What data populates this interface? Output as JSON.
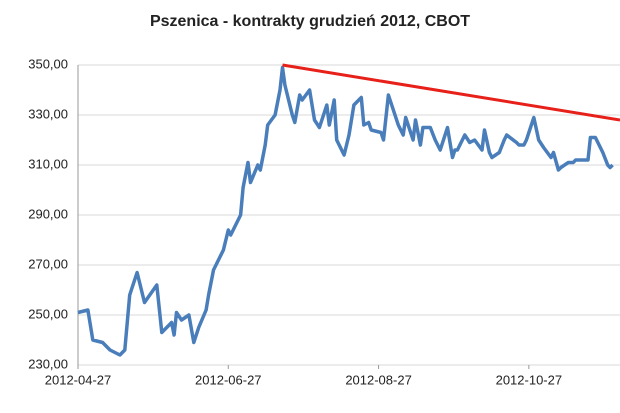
{
  "chart_data": {
    "type": "line",
    "title": "Pszenica - kontrakty grudzień 2012, CBOT",
    "x": [
      "2012-04-27",
      "2012-05-01",
      "2012-05-03",
      "2012-05-07",
      "2012-05-10",
      "2012-05-14",
      "2012-05-16",
      "2012-05-18",
      "2012-05-21",
      "2012-05-24",
      "2012-05-29",
      "2012-05-31",
      "2012-06-04",
      "2012-06-05",
      "2012-06-06",
      "2012-06-08",
      "2012-06-11",
      "2012-06-13",
      "2012-06-15",
      "2012-06-18",
      "2012-06-19",
      "2012-06-21",
      "2012-06-25",
      "2012-06-27",
      "2012-06-28",
      "2012-07-02",
      "2012-07-03",
      "2012-07-05",
      "2012-07-06",
      "2012-07-09",
      "2012-07-10",
      "2012-07-12",
      "2012-07-13",
      "2012-07-16",
      "2012-07-18",
      "2012-07-19",
      "2012-07-20",
      "2012-07-23",
      "2012-07-24",
      "2012-07-26",
      "2012-07-27",
      "2012-07-30",
      "2012-08-01",
      "2012-08-03",
      "2012-08-06",
      "2012-08-07",
      "2012-08-09",
      "2012-08-10",
      "2012-08-13",
      "2012-08-15",
      "2012-08-17",
      "2012-08-20",
      "2012-08-21",
      "2012-08-23",
      "2012-08-24",
      "2012-08-28",
      "2012-08-29",
      "2012-08-31",
      "2012-09-04",
      "2012-09-06",
      "2012-09-07",
      "2012-09-10",
      "2012-09-11",
      "2012-09-13",
      "2012-09-14",
      "2012-09-17",
      "2012-09-19",
      "2012-09-21",
      "2012-09-24",
      "2012-09-26",
      "2012-09-27",
      "2012-09-28",
      "2012-10-01",
      "2012-10-03",
      "2012-10-05",
      "2012-10-08",
      "2012-10-09",
      "2012-10-11",
      "2012-10-12",
      "2012-10-15",
      "2012-10-17",
      "2012-10-18",
      "2012-10-22",
      "2012-10-23",
      "2012-10-25",
      "2012-10-26",
      "2012-10-29",
      "2012-10-31",
      "2012-11-02",
      "2012-11-05",
      "2012-11-06",
      "2012-11-08",
      "2012-11-09",
      "2012-11-12",
      "2012-11-14",
      "2012-11-15",
      "2012-11-19",
      "2012-11-20",
      "2012-11-21",
      "2012-11-23",
      "2012-11-26",
      "2012-11-28",
      "2012-11-29",
      "2012-11-30"
    ],
    "series": [
      {
        "name": "Pszenica",
        "color": "#4a7ebb",
        "values": [
          251,
          252,
          240,
          239,
          236,
          234,
          236,
          258,
          267,
          255,
          262,
          243,
          247,
          242,
          251,
          248,
          250,
          239,
          245,
          252,
          258,
          268,
          276,
          284,
          282,
          290,
          301,
          311,
          303,
          310,
          308,
          318,
          326,
          330,
          340,
          349,
          342,
          330,
          327,
          338,
          336,
          340,
          328,
          325,
          334,
          326,
          336,
          320,
          314,
          322,
          334,
          337,
          326,
          327,
          324,
          323,
          320,
          338,
          326,
          322,
          329,
          320,
          328,
          318,
          325,
          325,
          320,
          316,
          325,
          313,
          316,
          316,
          322,
          319,
          320,
          316,
          324,
          315,
          313,
          315,
          320,
          322,
          319,
          318,
          318,
          320,
          329,
          320,
          317,
          313,
          315,
          308,
          309,
          311,
          311,
          312,
          312,
          312,
          321,
          321,
          315,
          310,
          309,
          310
        ]
      }
    ],
    "trendline": {
      "x": [
        "2012-07-19",
        "2012-12-03"
      ],
      "values": [
        350,
        328
      ],
      "color": "#e8201a"
    },
    "xlim": [
      "2012-04-27",
      "2012-12-03"
    ],
    "xticks": [
      "2012-04-27",
      "2012-06-27",
      "2012-08-27",
      "2012-10-27"
    ],
    "ylim": [
      230,
      350
    ],
    "yticks": [
      {
        "value": 230,
        "label": "230,00"
      },
      {
        "value": 250,
        "label": "250,00"
      },
      {
        "value": 270,
        "label": "270,00"
      },
      {
        "value": 290,
        "label": "290,00"
      },
      {
        "value": 310,
        "label": "310,00"
      },
      {
        "value": 330,
        "label": "330,00"
      },
      {
        "value": 350,
        "label": "350,00"
      }
    ],
    "grid": true
  }
}
